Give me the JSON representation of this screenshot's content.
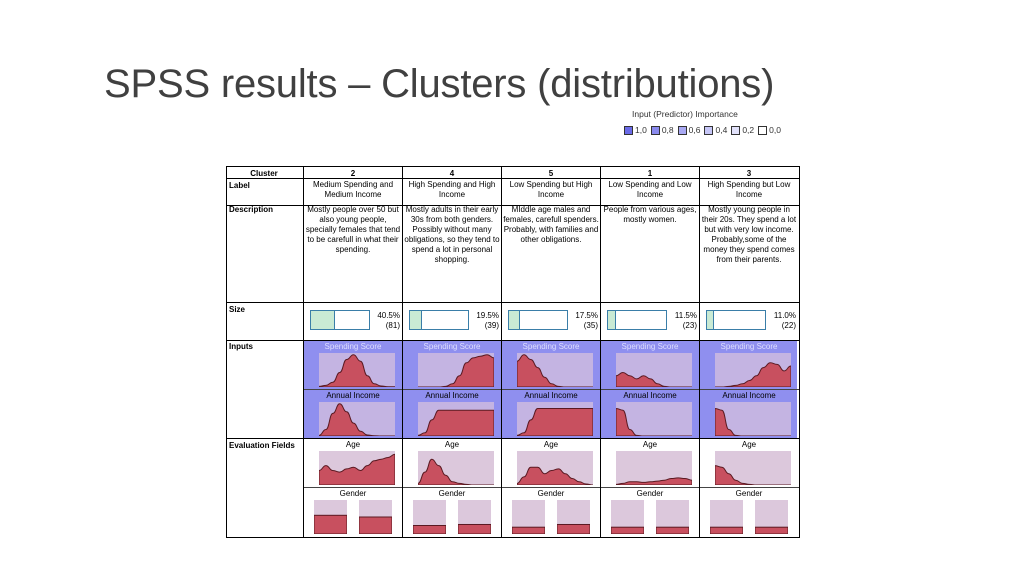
{
  "title": "SPSS results – Clusters (distributions)",
  "legend": {
    "title": "Input (Predictor) Importance",
    "items": [
      {
        "label": "1,0",
        "color": "#6a6ae8"
      },
      {
        "label": "0,8",
        "color": "#8a8aee"
      },
      {
        "label": "0,6",
        "color": "#a9a9f3"
      },
      {
        "label": "0,4",
        "color": "#c6c6f7"
      },
      {
        "label": "0,2",
        "color": "#e2e2fb"
      },
      {
        "label": "0,0",
        "color": "#ffffff"
      }
    ]
  },
  "row_labels": {
    "cluster": "Cluster",
    "label": "Label",
    "description": "Description",
    "size": "Size",
    "inputs": "Inputs",
    "evaluation": "Evaluation Fields"
  },
  "field_names": {
    "spending": "Spending Score",
    "income": "Annual Income",
    "age": "Age",
    "gender": "Gender"
  },
  "colors": {
    "curve_fill": "#c8505f",
    "curve_stroke": "#5a1a22",
    "chart_bg_input": "#c4b4e2",
    "chart_bg_eval": "#dcc8dc",
    "inputs_bg": "#8f8fef"
  },
  "clusters": [
    {
      "id": "2",
      "label": "Medium Spending and Medium Income",
      "description": "Mostly people over 50 but also young people, specially females that tend to be carefull in what their spending.",
      "size_pct": "40.5%",
      "size_n": "(81)",
      "size_frac": 0.405,
      "spending": [
        0.02,
        0.05,
        0.15,
        0.45,
        0.85,
        1.0,
        0.8,
        0.35,
        0.1,
        0.03,
        0.01,
        0.01
      ],
      "income": [
        0.02,
        0.2,
        0.7,
        1.0,
        0.75,
        0.4,
        0.15,
        0.03,
        0.01,
        0.0,
        0.0,
        0.0
      ],
      "age": [
        0.45,
        0.6,
        0.45,
        0.4,
        0.5,
        0.55,
        0.45,
        0.6,
        0.75,
        0.8,
        0.85,
        0.95
      ],
      "gender": [
        0.55,
        0.5
      ]
    },
    {
      "id": "4",
      "label": "High Spending and High Income",
      "description": "Mostly adults in their early 30s from both genders. Possibly without many obligations, so they tend to spend a lot in personal shopping.",
      "size_pct": "19.5%",
      "size_n": "(39)",
      "size_frac": 0.195,
      "spending": [
        0.0,
        0.0,
        0.0,
        0.0,
        0.02,
        0.1,
        0.35,
        0.75,
        0.9,
        0.95,
        1.0,
        0.9
      ],
      "income": [
        0.02,
        0.1,
        0.5,
        0.8,
        0.8,
        0.8,
        0.8,
        0.8,
        0.8,
        0.8,
        0.8,
        0.8
      ],
      "age": [
        0.05,
        0.4,
        0.8,
        0.6,
        0.3,
        0.1,
        0.05,
        0.02,
        0.0,
        0.0,
        0.0,
        0.0
      ],
      "gender": [
        0.25,
        0.28
      ]
    },
    {
      "id": "5",
      "label": "Low Spending but High Income",
      "description": "MIddle age males and females, carefull spenders. Probably, with families and other obligations.",
      "size_pct": "17.5%",
      "size_n": "(35)",
      "size_frac": 0.175,
      "spending": [
        0.8,
        1.0,
        0.85,
        0.6,
        0.3,
        0.1,
        0.02,
        0.0,
        0.0,
        0.0,
        0.0,
        0.0
      ],
      "income": [
        0.02,
        0.1,
        0.5,
        0.85,
        0.85,
        0.85,
        0.85,
        0.85,
        0.85,
        0.85,
        0.85,
        0.85
      ],
      "age": [
        0.05,
        0.25,
        0.55,
        0.55,
        0.35,
        0.45,
        0.5,
        0.35,
        0.2,
        0.1,
        0.03,
        0.0
      ],
      "gender": [
        0.2,
        0.28
      ]
    },
    {
      "id": "1",
      "label": "Low Spending and Low Income",
      "description": "People from various ages, mostly women.",
      "size_pct": "11.5%",
      "size_n": "(23)",
      "size_frac": 0.115,
      "spending": [
        0.35,
        0.45,
        0.35,
        0.25,
        0.35,
        0.25,
        0.1,
        0.02,
        0.0,
        0.0,
        0.0,
        0.0
      ],
      "income": [
        0.85,
        0.8,
        0.2,
        0.02,
        0.0,
        0.0,
        0.0,
        0.0,
        0.0,
        0.0,
        0.0,
        0.0
      ],
      "age": [
        0.02,
        0.05,
        0.1,
        0.1,
        0.08,
        0.1,
        0.12,
        0.15,
        0.2,
        0.22,
        0.2,
        0.15
      ],
      "gender": [
        0.2,
        0.2
      ]
    },
    {
      "id": "3",
      "label": "High Spending but Low Income",
      "description": "Mostly young people in their 20s. They spend a lot but with very low income. Probably,some of the money they spend comes from their parents.",
      "size_pct": "11.0%",
      "size_n": "(22)",
      "size_frac": 0.11,
      "spending": [
        0.0,
        0.0,
        0.02,
        0.05,
        0.1,
        0.2,
        0.35,
        0.6,
        0.75,
        0.7,
        0.5,
        0.65
      ],
      "income": [
        0.85,
        0.8,
        0.2,
        0.02,
        0.0,
        0.0,
        0.0,
        0.0,
        0.0,
        0.0,
        0.0,
        0.0
      ],
      "age": [
        0.6,
        0.55,
        0.35,
        0.15,
        0.05,
        0.02,
        0.0,
        0.0,
        0.0,
        0.0,
        0.0,
        0.0
      ],
      "gender": [
        0.2,
        0.2
      ]
    }
  ]
}
